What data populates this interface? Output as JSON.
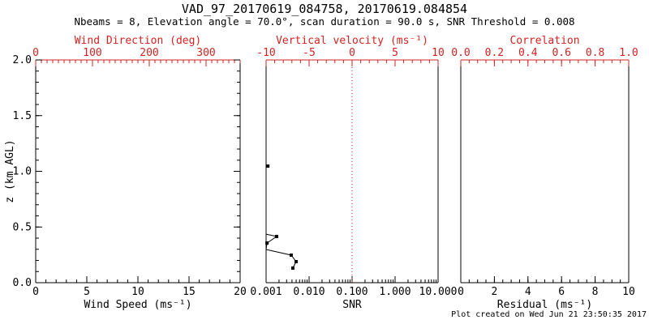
{
  "header": {
    "title": "VAD_97_20170619_084758, 20170619.084854",
    "subtitle": "Nbeams = 8, Elevation angle = 70.0°, scan duration = 90.0 s, SNR Threshold = 0.008"
  },
  "footer": {
    "created_text": "Plot created on Wed Jun 21 23:50:35 2017"
  },
  "colors": {
    "primary_axis": "#000000",
    "secondary_axis": "#d42222",
    "background": "#ffffff",
    "data_series": "#000000"
  },
  "chart_data": [
    {
      "type": "line",
      "panel": "wind",
      "x_bottom": {
        "label": "Wind Speed (ms⁻¹)",
        "scale": "linear",
        "min": 0,
        "max": 20,
        "major_ticks": [
          0,
          5,
          10,
          15,
          20
        ],
        "tick_labels": [
          "0",
          "5",
          "10",
          "15",
          "20"
        ],
        "minor_step": 1,
        "color_key": "primary_axis"
      },
      "x_top": {
        "label": "Wind Direction (deg)",
        "scale": "linear",
        "min": 0,
        "max": 360,
        "major_ticks": [
          0,
          100,
          200,
          300
        ],
        "tick_labels": [
          "0",
          "100",
          "200",
          "300"
        ],
        "minor_step": 10,
        "color_key": "secondary_axis"
      },
      "y_left": {
        "label": "z (km AGL)",
        "min": 0,
        "max": 2,
        "major_ticks": [
          0,
          0.5,
          1,
          1.5,
          2
        ],
        "tick_labels": [
          "0.0",
          "0.5",
          "1.0",
          "1.5",
          "2.0"
        ],
        "minor_step": 0.1,
        "show_ticks": true,
        "show_labels": true
      },
      "series": []
    },
    {
      "type": "line",
      "panel": "snr",
      "x_bottom": {
        "label": "SNR",
        "scale": "log",
        "min": 0.001,
        "max": 10,
        "major_ticks": [
          0.001,
          0.01,
          0.1,
          1,
          10
        ],
        "tick_labels": [
          "0.001",
          "0.010",
          "0.100",
          "1.000",
          "10.000"
        ],
        "color_key": "primary_axis"
      },
      "x_top": {
        "label": "Vertical velocity (ms⁻¹)",
        "scale": "linear",
        "min": -10,
        "max": 10,
        "major_ticks": [
          -10,
          -5,
          0,
          5,
          10
        ],
        "tick_labels": [
          "-10",
          "-5",
          "0",
          "5",
          "10"
        ],
        "minor_step": 1,
        "color_key": "secondary_axis"
      },
      "y_left": {
        "min": 0,
        "max": 2,
        "show_ticks": false,
        "show_labels": false
      },
      "reference_line": {
        "axis": "x_top",
        "value": 0,
        "style": "dotted",
        "color_key": "secondary_axis"
      },
      "series": [
        {
          "name": "snr-profile",
          "connect": true,
          "marker": "square",
          "points": [
            {
              "x": 0.001,
              "y": 0.436,
              "marker": false
            },
            {
              "x": 0.00176,
              "y": 0.415,
              "marker": true
            },
            {
              "x": 0.00105,
              "y": 0.356,
              "marker": true
            },
            {
              "x": 0.001,
              "y": 0.298,
              "marker": false
            },
            {
              "x": 0.00384,
              "y": 0.247,
              "marker": true
            },
            {
              "x": 0.005,
              "y": 0.189,
              "marker": true
            },
            {
              "x": 0.00419,
              "y": 0.131,
              "marker": true
            }
          ]
        },
        {
          "name": "snr-detached-point",
          "connect": false,
          "marker": "square",
          "points": [
            {
              "x": 0.0011,
              "y": 1.047,
              "marker": true
            }
          ]
        }
      ]
    },
    {
      "type": "line",
      "panel": "residual",
      "x_bottom": {
        "label": "Residual (ms⁻¹)",
        "scale": "linear",
        "min": 0,
        "max": 10,
        "major_ticks": [
          0,
          2,
          4,
          6,
          8,
          10
        ],
        "tick_labels": [
          "0",
          "2",
          "4",
          "6",
          "8",
          "10"
        ],
        "minor_step": 0.5,
        "color_key": "primary_axis"
      },
      "x_top": {
        "label": "Correlation",
        "scale": "linear",
        "min": 0,
        "max": 1,
        "major_ticks": [
          0,
          0.2,
          0.4,
          0.6,
          0.8,
          1
        ],
        "tick_labels": [
          "0.0",
          "0.2",
          "0.4",
          "0.6",
          "0.8",
          "1.0"
        ],
        "minor_step": 0.05,
        "color_key": "secondary_axis"
      },
      "y_left": {
        "min": 0,
        "max": 2,
        "show_ticks": false,
        "show_labels": false
      },
      "series": []
    }
  ]
}
